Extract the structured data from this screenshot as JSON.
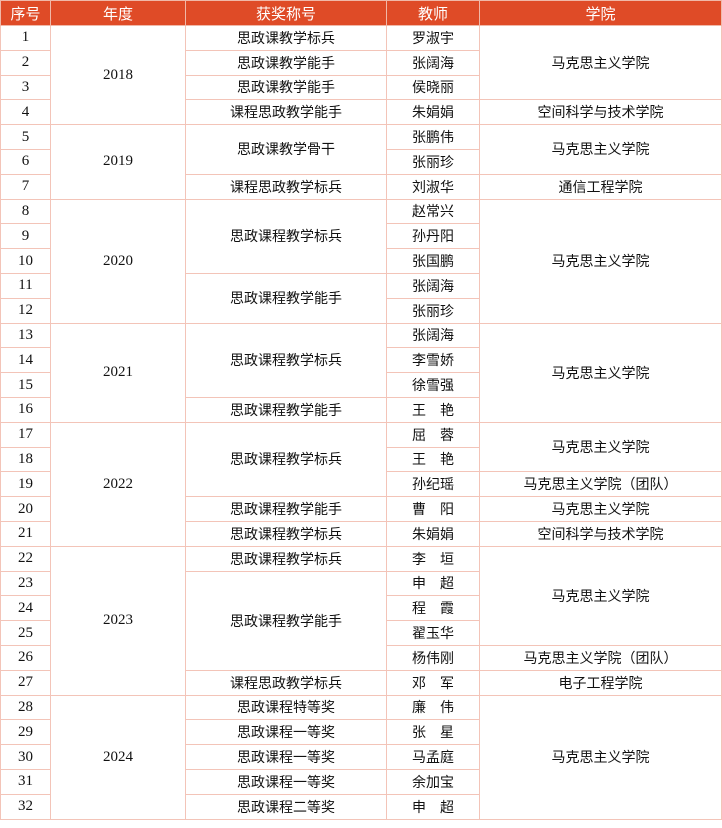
{
  "colors": {
    "header_bg": "#df4b27",
    "header_text": "#ffffff",
    "border": "#f3c4b8"
  },
  "headers": [
    "序号",
    "年度",
    "获奖称号",
    "教师",
    "学院"
  ],
  "years": [
    {
      "text": "2018",
      "rows": 4
    },
    {
      "text": "2019",
      "rows": 3
    },
    {
      "text": "2020",
      "rows": 5
    },
    {
      "text": "2021",
      "rows": 4
    },
    {
      "text": "2022",
      "rows": 5
    },
    {
      "text": "2023",
      "rows": 6
    },
    {
      "text": "2024",
      "rows": 5
    }
  ],
  "awards": [
    {
      "text": "思政课教学标兵",
      "rows": 1
    },
    {
      "text": "思政课教学能手",
      "rows": 1
    },
    {
      "text": "思政课教学能手",
      "rows": 1
    },
    {
      "text": "课程思政教学能手",
      "rows": 1
    },
    {
      "text": "思政课教学骨干",
      "rows": 2
    },
    {
      "text": "课程思政教学标兵",
      "rows": 1
    },
    {
      "text": "思政课程教学标兵",
      "rows": 3
    },
    {
      "text": "思政课程教学能手",
      "rows": 2
    },
    {
      "text": "思政课程教学标兵",
      "rows": 3
    },
    {
      "text": "思政课程教学能手",
      "rows": 1
    },
    {
      "text": "思政课程教学标兵",
      "rows": 3
    },
    {
      "text": "思政课程教学能手",
      "rows": 1
    },
    {
      "text": "思政课程教学标兵",
      "rows": 1
    },
    {
      "text": "思政课程教学标兵",
      "rows": 1
    },
    {
      "text": "思政课程教学能手",
      "rows": 4
    },
    {
      "text": "课程思政教学标兵",
      "rows": 1
    },
    {
      "text": "思政课程特等奖",
      "rows": 1
    },
    {
      "text": "思政课程一等奖",
      "rows": 1
    },
    {
      "text": "思政课程一等奖",
      "rows": 1
    },
    {
      "text": "思政课程一等奖",
      "rows": 1
    },
    {
      "text": "思政课程二等奖",
      "rows": 1
    }
  ],
  "teachers": [
    "罗淑宇",
    "张阔海",
    "侯晓丽",
    "朱娟娟",
    "张鹏伟",
    "张丽珍",
    "刘淑华",
    "赵常兴",
    "孙丹阳",
    "张国鹏",
    "张阔海",
    "张丽珍",
    "张阔海",
    "李雪娇",
    "徐雪强",
    "王　艳",
    "屈　蓉",
    "王　艳",
    "孙纪瑶",
    "曹　阳",
    "朱娟娟",
    "李　垣",
    "申　超",
    "程　霞",
    "翟玉华",
    "杨伟刚",
    "邓　军",
    "廉　伟",
    "张　星",
    "马孟庭",
    "余加宝",
    "申　超"
  ],
  "colleges": [
    {
      "text": "马克思主义学院",
      "rows": 3
    },
    {
      "text": "空间科学与技术学院",
      "rows": 1
    },
    {
      "text": "马克思主义学院",
      "rows": 2
    },
    {
      "text": "通信工程学院",
      "rows": 1
    },
    {
      "text": "马克思主义学院",
      "rows": 5
    },
    {
      "text": "马克思主义学院",
      "rows": 4
    },
    {
      "text": "马克思主义学院",
      "rows": 2
    },
    {
      "text": "马克思主义学院（团队）",
      "rows": 1
    },
    {
      "text": "马克思主义学院",
      "rows": 1
    },
    {
      "text": "空间科学与技术学院",
      "rows": 1
    },
    {
      "text": "马克思主义学院",
      "rows": 4
    },
    {
      "text": "马克思主义学院（团队）",
      "rows": 1
    },
    {
      "text": "电子工程学院",
      "rows": 1
    },
    {
      "text": "马克思主义学院",
      "rows": 5
    }
  ]
}
